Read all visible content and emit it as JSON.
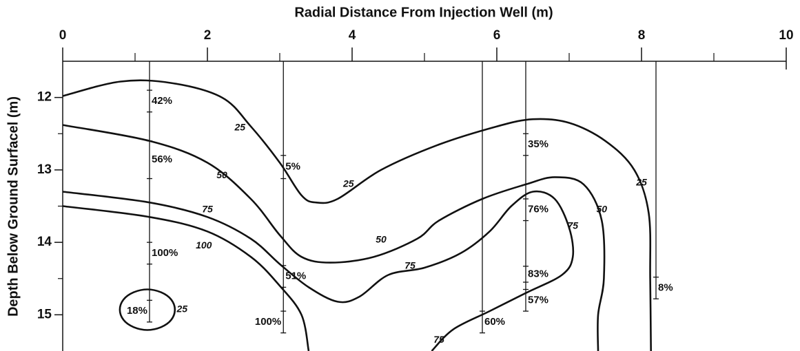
{
  "chart_data": {
    "type": "contour",
    "xlabel": "Radial Distance From Injection Well (m)",
    "ylabel": "Depth Below Ground Surfacel (m)",
    "xlim": [
      0,
      10
    ],
    "xticks": [
      0,
      2,
      4,
      6,
      8,
      10
    ],
    "xminor": [
      1,
      3,
      5,
      7,
      9
    ],
    "ylim": [
      11.5,
      15.5
    ],
    "yticks": [
      12,
      13,
      14,
      15
    ],
    "yminor": [
      12.5,
      13.5,
      14.5
    ],
    "y_inverted": true,
    "color": "#111111",
    "contours": [
      {
        "level": 25,
        "x": [
          0,
          0.8,
          1.5,
          2.2,
          2.6,
          3.0,
          3.3,
          3.5,
          3.8,
          4.4,
          5.2,
          6.0,
          6.5,
          7.0,
          7.5,
          7.9,
          8.1,
          8.12,
          8.13
        ],
        "y": [
          11.98,
          11.78,
          11.8,
          12.0,
          12.4,
          12.9,
          13.35,
          13.45,
          13.4,
          13.0,
          12.65,
          12.4,
          12.3,
          12.35,
          12.6,
          13.0,
          13.6,
          14.5,
          15.5
        ]
      },
      {
        "level": 50,
        "x": [
          0,
          1.2,
          2.0,
          2.6,
          3.0,
          3.3,
          3.7,
          4.3,
          4.9,
          5.2,
          5.8,
          6.4,
          6.8,
          7.2,
          7.45,
          7.48,
          7.4,
          7.4
        ],
        "y": [
          12.38,
          12.6,
          12.9,
          13.4,
          13.9,
          14.2,
          14.28,
          14.2,
          13.95,
          13.7,
          13.4,
          13.2,
          13.1,
          13.2,
          13.7,
          14.5,
          15.0,
          15.5
        ]
      },
      {
        "level": 75,
        "x": [
          0,
          1.2,
          2.0,
          2.6,
          3.0,
          3.4,
          3.8,
          4.1,
          4.5,
          5.0,
          5.5,
          5.9,
          6.2,
          6.5,
          6.8,
          7.0,
          7.05,
          6.9,
          6.4,
          5.9,
          5.4,
          5.1
        ],
        "y": [
          13.3,
          13.45,
          13.65,
          13.95,
          14.3,
          14.62,
          14.82,
          14.75,
          14.45,
          14.35,
          14.15,
          13.85,
          13.5,
          13.3,
          13.4,
          13.8,
          14.2,
          14.45,
          14.7,
          14.95,
          15.2,
          15.5
        ]
      },
      {
        "level": 100,
        "x": [
          0,
          1.2,
          2.0,
          2.6,
          3.0,
          3.3,
          3.4
        ],
        "y": [
          13.5,
          13.65,
          13.85,
          14.2,
          14.6,
          15.0,
          15.5
        ]
      },
      {
        "level": 25,
        "x": [
          1.55,
          1.5,
          1.36,
          1.17,
          0.98,
          0.84,
          0.79,
          0.84,
          0.98,
          1.17,
          1.36,
          1.5,
          1.55
        ],
        "y": [
          14.93,
          14.79,
          14.69,
          14.65,
          14.69,
          14.79,
          14.93,
          15.07,
          15.17,
          15.21,
          15.17,
          15.07,
          14.93
        ]
      }
    ],
    "wells": [
      {
        "x": 1.2,
        "top": 11.5,
        "bottom": 15.1,
        "samples": [
          {
            "value": 42,
            "label": "42%",
            "top": 11.9,
            "bottom": 12.2
          },
          {
            "value": 56,
            "label": "56%",
            "top": 12.6,
            "bottom": 13.12
          },
          {
            "value": 100,
            "label": "100%",
            "top": 14.0,
            "bottom": 14.3
          },
          {
            "value": 18,
            "label": "18%",
            "top": 14.8,
            "bottom": 15.1
          }
        ]
      },
      {
        "x": 3.05,
        "top": 11.5,
        "bottom": 15.25,
        "samples": [
          {
            "value": 5,
            "label": "5%",
            "top": 12.8,
            "bottom": 13.12
          },
          {
            "value": 51,
            "label": "51%",
            "top": 14.32,
            "bottom": 14.62
          },
          {
            "value": 100,
            "label": "100%",
            "top": 14.95,
            "bottom": 15.25
          }
        ]
      },
      {
        "x": 5.8,
        "top": 11.5,
        "bottom": 15.25,
        "samples": [
          {
            "value": 60,
            "label": "60%",
            "top": 14.95,
            "bottom": 15.25
          }
        ]
      },
      {
        "x": 6.4,
        "top": 11.5,
        "bottom": 14.95,
        "samples": [
          {
            "value": 35,
            "label": "35%",
            "top": 12.5,
            "bottom": 12.8
          },
          {
            "value": 76,
            "label": "76%",
            "top": 13.4,
            "bottom": 13.7
          },
          {
            "value": 83,
            "label": "83%",
            "top": 14.33,
            "bottom": 14.55
          },
          {
            "value": 57,
            "label": "57%",
            "top": 14.65,
            "bottom": 14.95
          }
        ]
      },
      {
        "x": 8.2,
        "top": 11.5,
        "bottom": 14.78,
        "samples": [
          {
            "value": 8,
            "label": "8%",
            "top": 14.48,
            "bottom": 14.78
          }
        ]
      }
    ]
  }
}
